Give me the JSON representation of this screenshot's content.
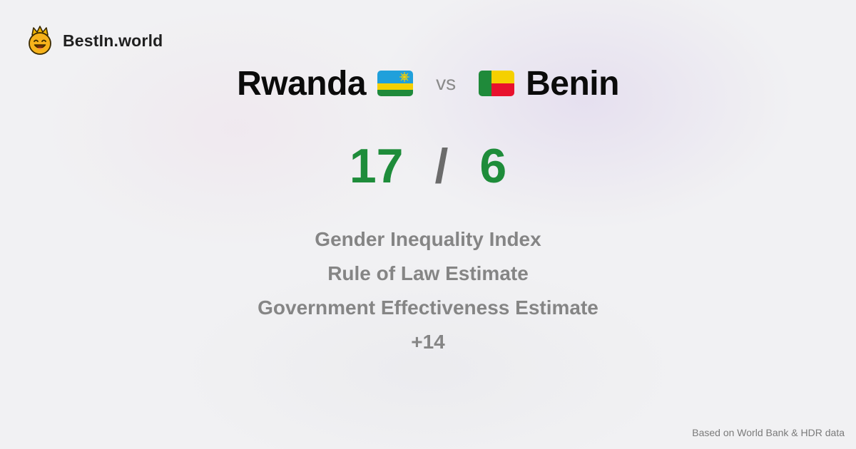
{
  "brand": {
    "name": "BestIn.world",
    "logo_icon": "smiling-crown-face-icon"
  },
  "comparison": {
    "country_a": "Rwanda",
    "country_a_flag": "rwanda-flag-icon",
    "vs_label": "vs",
    "country_b": "Benin",
    "country_b_flag": "benin-flag-icon",
    "score_a": "17",
    "score_separator": "/",
    "score_b": "6"
  },
  "metrics": [
    "Gender Inequality Index",
    "Rule of Law Estimate",
    "Government Effectiveness Estimate",
    "+14"
  ],
  "footer": {
    "source": "Based on World Bank & HDR data"
  },
  "colors": {
    "score_green": "#1e8c3a",
    "metric_gray": "#858585",
    "background": "#f1f1f3"
  }
}
